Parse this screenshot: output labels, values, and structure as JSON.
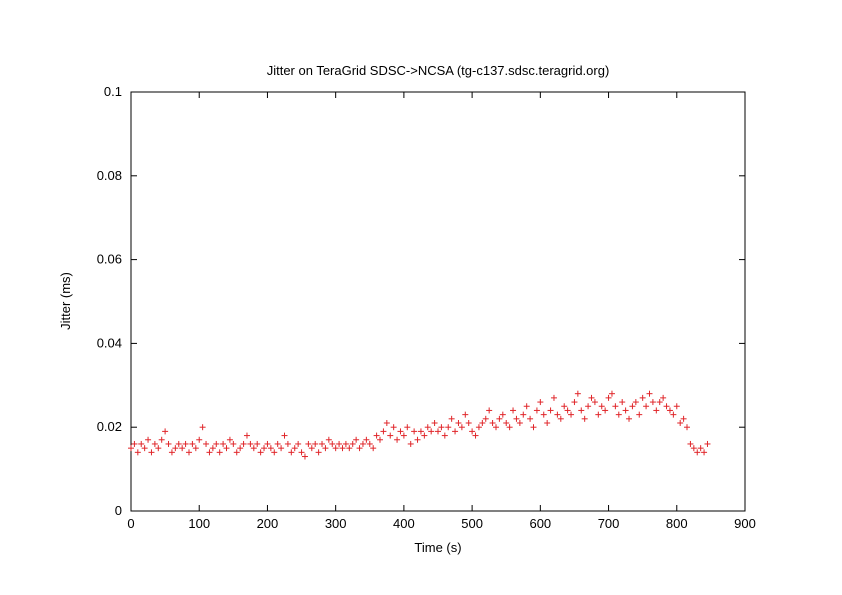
{
  "chart_data": {
    "type": "scatter",
    "title": "Jitter on TeraGrid SDSC->NCSA (tg-c137.sdsc.teragrid.org)",
    "xlabel": "Time (s)",
    "ylabel": "Jitter (ms)",
    "xlim": [
      0,
      900
    ],
    "ylim": [
      0,
      0.1
    ],
    "x_ticks": [
      "0",
      "100",
      "200",
      "300",
      "400",
      "500",
      "600",
      "700",
      "800",
      "900"
    ],
    "y_ticks": [
      "0",
      "0.02",
      "0.04",
      "0.06",
      "0.08",
      "0.1"
    ],
    "marker": "+",
    "marker_color": "#e0262a",
    "grid": false,
    "legend": "none",
    "series": [
      {
        "x": [
          0,
          5,
          10,
          15,
          20,
          25,
          30,
          35,
          40,
          45,
          50,
          55,
          60,
          65,
          70,
          75,
          80,
          85,
          90,
          95,
          100,
          105,
          110,
          115,
          120,
          125,
          130,
          135,
          140,
          145,
          150,
          155,
          160,
          165,
          170,
          175,
          180,
          185,
          190,
          195,
          200,
          205,
          210,
          215,
          220,
          225,
          230,
          235,
          240,
          245,
          250,
          255,
          260,
          265,
          270,
          275,
          280,
          285,
          290,
          295,
          300,
          305,
          310,
          315,
          320,
          325,
          330,
          335,
          340,
          345,
          350,
          355,
          360,
          365,
          370,
          375,
          380,
          385,
          390,
          395,
          400,
          405,
          410,
          415,
          420,
          425,
          430,
          435,
          440,
          445,
          450,
          455,
          460,
          465,
          470,
          475,
          480,
          485,
          490,
          495,
          500,
          505,
          510,
          515,
          520,
          525,
          530,
          535,
          540,
          545,
          550,
          555,
          560,
          565,
          570,
          575,
          580,
          585,
          590,
          595,
          600,
          605,
          610,
          615,
          620,
          625,
          630,
          635,
          640,
          645,
          650,
          655,
          660,
          665,
          670,
          675,
          680,
          685,
          690,
          695,
          700,
          705,
          710,
          715,
          720,
          725,
          730,
          735,
          740,
          745,
          750,
          755,
          760,
          765,
          770,
          775,
          780,
          785,
          790,
          795,
          800,
          805,
          810,
          815,
          820,
          825,
          830,
          835,
          840,
          845
        ],
        "y": [
          0.015,
          0.016,
          0.014,
          0.016,
          0.015,
          0.017,
          0.014,
          0.016,
          0.015,
          0.017,
          0.019,
          0.016,
          0.014,
          0.015,
          0.016,
          0.015,
          0.016,
          0.014,
          0.016,
          0.015,
          0.017,
          0.02,
          0.016,
          0.014,
          0.015,
          0.016,
          0.014,
          0.016,
          0.015,
          0.017,
          0.016,
          0.014,
          0.015,
          0.016,
          0.018,
          0.016,
          0.015,
          0.016,
          0.014,
          0.015,
          0.016,
          0.015,
          0.014,
          0.016,
          0.015,
          0.018,
          0.016,
          0.014,
          0.015,
          0.016,
          0.014,
          0.013,
          0.016,
          0.015,
          0.016,
          0.014,
          0.016,
          0.015,
          0.017,
          0.016,
          0.015,
          0.016,
          0.015,
          0.016,
          0.015,
          0.016,
          0.017,
          0.015,
          0.016,
          0.017,
          0.016,
          0.015,
          0.018,
          0.017,
          0.019,
          0.021,
          0.018,
          0.02,
          0.017,
          0.019,
          0.018,
          0.02,
          0.016,
          0.019,
          0.017,
          0.019,
          0.018,
          0.02,
          0.019,
          0.021,
          0.019,
          0.02,
          0.018,
          0.02,
          0.022,
          0.019,
          0.021,
          0.02,
          0.023,
          0.021,
          0.019,
          0.018,
          0.02,
          0.021,
          0.022,
          0.024,
          0.021,
          0.02,
          0.022,
          0.023,
          0.021,
          0.02,
          0.024,
          0.022,
          0.021,
          0.023,
          0.025,
          0.022,
          0.02,
          0.024,
          0.026,
          0.023,
          0.021,
          0.024,
          0.027,
          0.023,
          0.022,
          0.025,
          0.024,
          0.023,
          0.026,
          0.028,
          0.024,
          0.022,
          0.025,
          0.027,
          0.026,
          0.023,
          0.025,
          0.024,
          0.027,
          0.028,
          0.025,
          0.023,
          0.026,
          0.024,
          0.022,
          0.025,
          0.026,
          0.023,
          0.027,
          0.025,
          0.028,
          0.026,
          0.024,
          0.026,
          0.027,
          0.025,
          0.024,
          0.023,
          0.025,
          0.021,
          0.022,
          0.02,
          0.016,
          0.015,
          0.014,
          0.015,
          0.014,
          0.016
        ]
      }
    ]
  }
}
